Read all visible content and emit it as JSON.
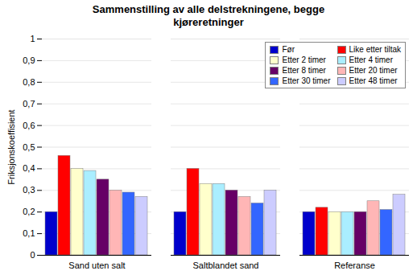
{
  "chart_data": {
    "type": "bar",
    "title": "Sammenstilling av alle delstrekningene, begge\nkjøreretninger",
    "ylabel": "Friksjonskoeffisient",
    "categories": [
      "Sand uten salt",
      "Saltblandet sand",
      "Referanse"
    ],
    "series": [
      {
        "name": "Før",
        "color": "#0000CC",
        "values": [
          0.2,
          0.2,
          0.2
        ]
      },
      {
        "name": "Like etter tiltak",
        "color": "#FF0000",
        "values": [
          0.46,
          0.4,
          0.22
        ]
      },
      {
        "name": "Etter 2 timer",
        "color": "#FFFFCC",
        "values": [
          0.4,
          0.33,
          0.2
        ]
      },
      {
        "name": "Etter 4 timer",
        "color": "#AAEEFF",
        "values": [
          0.39,
          0.33,
          0.2
        ]
      },
      {
        "name": "Etter 8 timer",
        "color": "#660066",
        "values": [
          0.35,
          0.3,
          0.2
        ]
      },
      {
        "name": "Etter 20 timer",
        "color": "#FFB6B6",
        "values": [
          0.3,
          0.27,
          0.25
        ]
      },
      {
        "name": "Etter 30 timer",
        "color": "#3366FF",
        "values": [
          0.29,
          0.24,
          0.21
        ]
      },
      {
        "name": "Etter 48 timer",
        "color": "#CCCCFF",
        "values": [
          0.27,
          0.3,
          0.28
        ]
      }
    ],
    "ylim": [
      0,
      1.0
    ],
    "yticks": [
      0,
      {
        "value": 0.1,
        "label": "0,1"
      },
      {
        "value": 0.2,
        "label": "0,2"
      },
      {
        "value": 0.3,
        "label": "0,3"
      },
      {
        "value": 0.4,
        "label": "0,4"
      },
      {
        "value": 0.5,
        "label": "0,5"
      },
      {
        "value": 0.6,
        "label": "0,6"
      },
      {
        "value": 0.7,
        "label": "0,7"
      },
      {
        "value": 0.8,
        "label": "0,8"
      },
      {
        "value": 0.9,
        "label": "0,9"
      },
      1
    ],
    "grid": true,
    "legend": "upper right"
  }
}
